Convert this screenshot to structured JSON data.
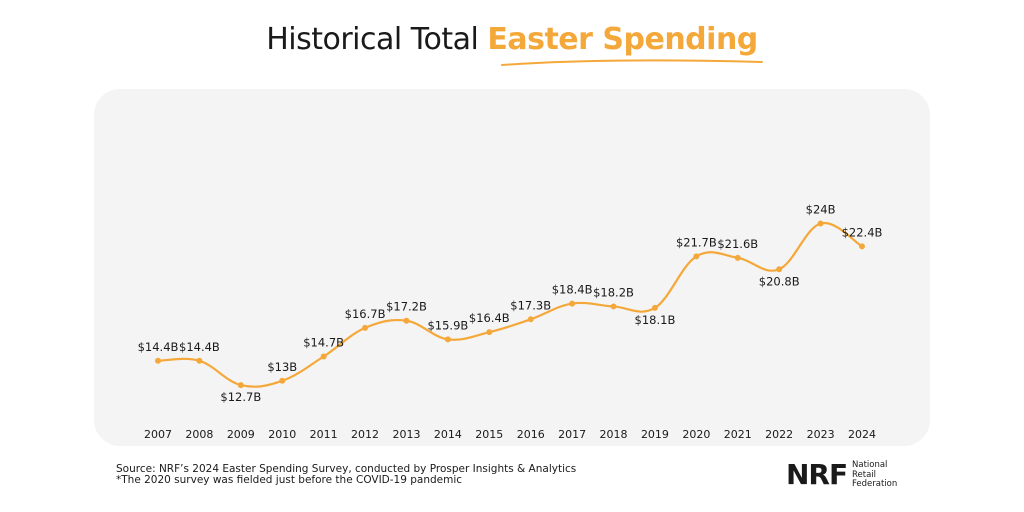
{
  "title": {
    "prefix": "Historical Total ",
    "highlight": "Easter Spending"
  },
  "colors": {
    "accent": "#F5A83A",
    "panel": "#F4F4F4",
    "text": "#1a1a1a"
  },
  "chart_data": {
    "type": "line",
    "title": "Historical Total Easter Spending",
    "xlabel": "",
    "ylabel": "",
    "ylim": [
      10,
      26
    ],
    "grid": false,
    "smooth": true,
    "x": [
      "2007",
      "2008",
      "2009",
      "2010",
      "2011",
      "2012",
      "2013",
      "2014",
      "2015",
      "2016",
      "2017",
      "2018",
      "2019",
      "2020",
      "2021",
      "2022",
      "2023",
      "2024"
    ],
    "series": [
      {
        "values": [
          14.4,
          14.4,
          12.7,
          13.0,
          14.7,
          16.7,
          17.2,
          15.9,
          16.4,
          17.3,
          18.4,
          18.2,
          18.1,
          21.7,
          21.6,
          20.8,
          24.0,
          22.4
        ],
        "labels": [
          "$14.4B",
          "$14.4B",
          "$12.7B",
          "$13B",
          "$14.7B",
          "$16.7B",
          "$17.2B",
          "$15.9B",
          "$16.4B",
          "$17.3B",
          "$18.4B",
          "$18.2B",
          "$18.1B",
          "$21.7B",
          "$21.6B",
          "$20.8B",
          "$24B",
          "$22.4B"
        ],
        "label_positions": [
          "above",
          "above",
          "below",
          "above",
          "above",
          "above",
          "above",
          "above",
          "above",
          "above",
          "above",
          "above",
          "below",
          "above",
          "above",
          "below",
          "above",
          "above"
        ]
      }
    ]
  },
  "footer": {
    "source": "Source: NRF’s 2024 Easter Spending Survey, conducted by Prosper Insights & Analytics",
    "note": "*The 2020 survey was fielded just before the COVID-19 pandemic"
  },
  "logo": {
    "mark": "NRF",
    "line1": "National",
    "line2": "Retail",
    "line3": "Federation"
  }
}
